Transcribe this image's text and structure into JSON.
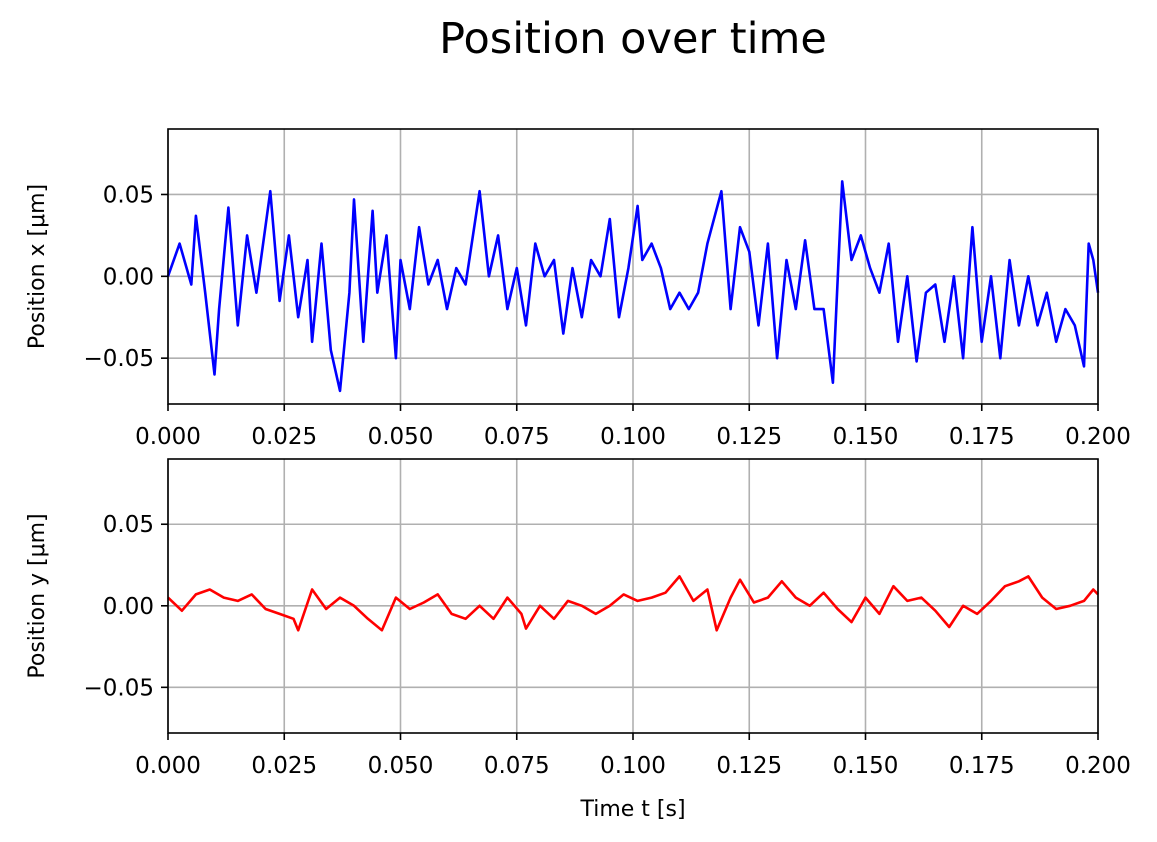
{
  "figure_title": "Position over time",
  "chart_data": [
    {
      "type": "line",
      "title": "",
      "xlabel": "",
      "ylabel": "Position x [μm]",
      "xlim": [
        0.0,
        0.2
      ],
      "ylim": [
        -0.078,
        0.09
      ],
      "xticks": [
        "0.000",
        "0.025",
        "0.050",
        "0.075",
        "0.100",
        "0.125",
        "0.150",
        "0.175",
        "0.200"
      ],
      "yticks": [
        {
          "value": 0.05,
          "label": "0.05"
        },
        {
          "value": 0.0,
          "label": "0.00"
        },
        {
          "value": -0.05,
          "label": "−0.05"
        }
      ],
      "grid": true,
      "color": "#0000ff",
      "series": [
        {
          "x": [
            0.0,
            0.0025,
            0.005,
            0.006,
            0.008,
            0.01,
            0.011,
            0.013,
            0.015,
            0.017,
            0.019,
            0.022,
            0.024,
            0.026,
            0.028,
            0.03,
            0.031,
            0.033,
            0.035,
            0.037,
            0.039,
            0.04,
            0.042,
            0.044,
            0.045,
            0.047,
            0.049,
            0.05,
            0.052,
            0.054,
            0.056,
            0.058,
            0.06,
            0.062,
            0.064,
            0.067,
            0.069,
            0.071,
            0.073,
            0.075,
            0.077,
            0.079,
            0.081,
            0.083,
            0.085,
            0.087,
            0.089,
            0.091,
            0.093,
            0.095,
            0.097,
            0.099,
            0.101,
            0.102,
            0.104,
            0.106,
            0.108,
            0.11,
            0.112,
            0.114,
            0.116,
            0.119,
            0.121,
            0.123,
            0.125,
            0.127,
            0.129,
            0.131,
            0.133,
            0.135,
            0.137,
            0.139,
            0.141,
            0.143,
            0.145,
            0.147,
            0.149,
            0.151,
            0.153,
            0.155,
            0.157,
            0.159,
            0.161,
            0.163,
            0.165,
            0.167,
            0.169,
            0.171,
            0.173,
            0.175,
            0.177,
            0.179,
            0.181,
            0.183,
            0.185,
            0.187,
            0.189,
            0.191,
            0.193,
            0.195,
            0.197,
            0.198,
            0.199,
            0.2
          ],
          "y": [
            0.0,
            0.02,
            -0.005,
            0.037,
            -0.01,
            -0.06,
            -0.02,
            0.042,
            -0.03,
            0.025,
            -0.01,
            0.052,
            -0.015,
            0.025,
            -0.025,
            0.01,
            -0.04,
            0.02,
            -0.045,
            -0.07,
            -0.01,
            0.047,
            -0.04,
            0.04,
            -0.01,
            0.025,
            -0.05,
            0.01,
            -0.02,
            0.03,
            -0.005,
            0.01,
            -0.02,
            0.005,
            -0.005,
            0.052,
            0.0,
            0.025,
            -0.02,
            0.005,
            -0.03,
            0.02,
            0.0,
            0.01,
            -0.035,
            0.005,
            -0.025,
            0.01,
            0.0,
            0.035,
            -0.025,
            0.005,
            0.043,
            0.01,
            0.02,
            0.005,
            -0.02,
            -0.01,
            -0.02,
            -0.01,
            0.02,
            0.052,
            -0.02,
            0.03,
            0.015,
            -0.03,
            0.02,
            -0.05,
            0.01,
            -0.02,
            0.022,
            -0.02,
            -0.02,
            -0.065,
            0.058,
            0.01,
            0.025,
            0.005,
            -0.01,
            0.02,
            -0.04,
            0.0,
            -0.052,
            -0.01,
            -0.005,
            -0.04,
            0.0,
            -0.05,
            0.03,
            -0.04,
            0.0,
            -0.05,
            0.01,
            -0.03,
            0.0,
            -0.03,
            -0.01,
            -0.04,
            -0.02,
            -0.03,
            -0.055,
            0.02,
            0.01,
            -0.01
          ]
        }
      ]
    },
    {
      "type": "line",
      "title": "",
      "xlabel": "Time t [s]",
      "ylabel": "Position y [μm]",
      "xlim": [
        0.0,
        0.2
      ],
      "ylim": [
        -0.078,
        0.09
      ],
      "xticks": [
        "0.000",
        "0.025",
        "0.050",
        "0.075",
        "0.100",
        "0.125",
        "0.150",
        "0.175",
        "0.200"
      ],
      "yticks": [
        {
          "value": 0.05,
          "label": "0.05"
        },
        {
          "value": 0.0,
          "label": "0.00"
        },
        {
          "value": -0.05,
          "label": "−0.05"
        }
      ],
      "grid": true,
      "color": "#ff0000",
      "series": [
        {
          "x": [
            0.0,
            0.003,
            0.006,
            0.009,
            0.012,
            0.015,
            0.018,
            0.021,
            0.024,
            0.027,
            0.028,
            0.031,
            0.034,
            0.037,
            0.04,
            0.043,
            0.046,
            0.049,
            0.052,
            0.055,
            0.058,
            0.061,
            0.064,
            0.067,
            0.07,
            0.073,
            0.076,
            0.077,
            0.08,
            0.083,
            0.086,
            0.089,
            0.092,
            0.095,
            0.098,
            0.101,
            0.104,
            0.107,
            0.11,
            0.113,
            0.116,
            0.118,
            0.121,
            0.123,
            0.126,
            0.129,
            0.132,
            0.135,
            0.138,
            0.141,
            0.144,
            0.147,
            0.15,
            0.153,
            0.156,
            0.159,
            0.162,
            0.165,
            0.168,
            0.171,
            0.174,
            0.177,
            0.18,
            0.183,
            0.185,
            0.188,
            0.191,
            0.194,
            0.197,
            0.199,
            0.2
          ],
          "y": [
            0.005,
            -0.003,
            0.007,
            0.01,
            0.005,
            0.003,
            0.007,
            -0.002,
            -0.005,
            -0.008,
            -0.015,
            0.01,
            -0.002,
            0.005,
            0.0,
            -0.008,
            -0.015,
            0.005,
            -0.002,
            0.002,
            0.007,
            -0.005,
            -0.008,
            0.0,
            -0.008,
            0.005,
            -0.005,
            -0.014,
            0.0,
            -0.008,
            0.003,
            0.0,
            -0.005,
            0.0,
            0.007,
            0.003,
            0.005,
            0.008,
            0.018,
            0.003,
            0.01,
            -0.015,
            0.005,
            0.016,
            0.002,
            0.005,
            0.015,
            0.005,
            0.0,
            0.008,
            -0.002,
            -0.01,
            0.005,
            -0.005,
            0.012,
            0.003,
            0.005,
            -0.003,
            -0.013,
            0.0,
            -0.005,
            0.003,
            0.012,
            0.015,
            0.018,
            0.005,
            -0.002,
            0.0,
            0.003,
            0.01,
            0.007
          ]
        }
      ]
    }
  ]
}
